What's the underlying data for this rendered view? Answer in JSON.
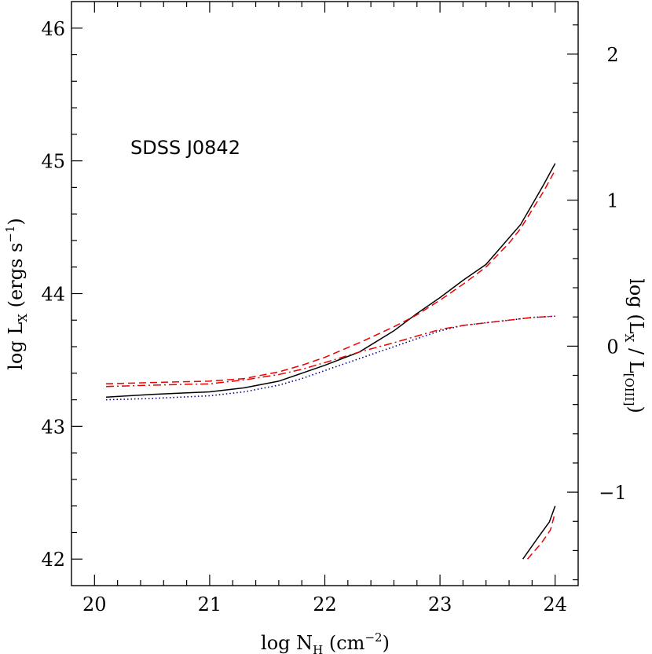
{
  "chart_data": {
    "type": "line",
    "annotation": "SDSS J0842",
    "xlabel": {
      "base": "log N",
      "sub": "H",
      "unit": " (cm",
      "sup": "−2",
      "close": ")"
    },
    "ylabel_left": {
      "base": "log L",
      "sub": "X",
      "unit": " (ergs s",
      "sup": "−1",
      "close": ")"
    },
    "ylabel_right": {
      "base": "log (L",
      "sub1": "X",
      "mid": " / L",
      "sub2": "[OIII]",
      "close": ")"
    },
    "xlim": [
      19.8,
      24.2
    ],
    "ylim_left": [
      41.8,
      46.2
    ],
    "ylim_right": [
      -1.64,
      2.36
    ],
    "xticks": [
      "20",
      "21",
      "22",
      "23",
      "24"
    ],
    "yticks_left": [
      "42",
      "43",
      "44",
      "45",
      "46"
    ],
    "yticks_right": [
      "−1",
      "0",
      "1",
      "2"
    ],
    "series": [
      {
        "style": "solid",
        "color": "#000000",
        "x": [
          20.1,
          20.5,
          21.0,
          21.3,
          21.6,
          21.8,
          22.0,
          22.3,
          22.6,
          22.8,
          23.0,
          23.2,
          23.4,
          23.6,
          23.7,
          23.8,
          23.9,
          24.0
        ],
        "y": [
          43.22,
          43.24,
          43.26,
          43.29,
          43.34,
          43.4,
          43.46,
          43.56,
          43.72,
          43.85,
          43.97,
          44.1,
          44.22,
          44.42,
          44.52,
          44.67,
          44.82,
          44.98
        ]
      },
      {
        "style": "dashed",
        "color": "#ee0000",
        "x": [
          20.1,
          20.5,
          21.0,
          21.3,
          21.6,
          21.8,
          22.0,
          22.3,
          22.6,
          22.8,
          23.0,
          23.2,
          23.4,
          23.6,
          23.7,
          23.8,
          23.9,
          24.0
        ],
        "y": [
          43.32,
          43.33,
          43.34,
          43.36,
          43.41,
          43.46,
          43.52,
          43.63,
          43.75,
          43.84,
          43.95,
          44.07,
          44.2,
          44.38,
          44.49,
          44.63,
          44.77,
          44.93
        ]
      },
      {
        "style": "dotted",
        "color": "#000080",
        "x": [
          20.1,
          20.5,
          21.0,
          21.3,
          21.6,
          21.8,
          22.0,
          22.3,
          22.6,
          22.8,
          23.0,
          23.2,
          23.4,
          23.6,
          23.8,
          24.0
        ],
        "y": [
          43.2,
          43.21,
          43.23,
          43.26,
          43.31,
          43.36,
          43.42,
          43.51,
          43.6,
          43.66,
          43.72,
          43.76,
          43.78,
          43.8,
          43.82,
          43.83
        ]
      },
      {
        "style": "dashdot",
        "color": "#ee0000",
        "x": [
          20.1,
          20.5,
          21.0,
          21.3,
          21.6,
          21.8,
          22.0,
          22.3,
          22.6,
          22.8,
          23.0,
          23.2,
          23.4,
          23.6,
          23.8,
          24.0
        ],
        "y": [
          43.3,
          43.31,
          43.32,
          43.35,
          43.39,
          43.43,
          43.48,
          43.56,
          43.63,
          43.68,
          43.73,
          43.76,
          43.78,
          43.8,
          43.82,
          43.83
        ]
      },
      {
        "style": "solid",
        "color": "#000000",
        "x": [
          23.72,
          23.85,
          23.95,
          24.0
        ],
        "y": [
          42.0,
          42.16,
          42.28,
          42.4
        ]
      },
      {
        "style": "dashed",
        "color": "#ee0000",
        "x": [
          23.76,
          23.88,
          23.96,
          24.0
        ],
        "y": [
          42.0,
          42.12,
          42.22,
          42.35
        ]
      }
    ]
  }
}
